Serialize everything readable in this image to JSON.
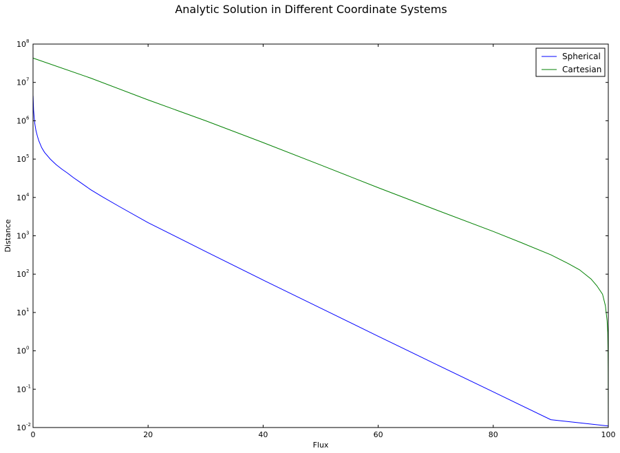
{
  "chart_data": {
    "type": "line",
    "title": "Analytic Solution in Different Coordinate Systems",
    "xlabel": "Flux",
    "ylabel": "Distance",
    "xlim": [
      0,
      100
    ],
    "ylim": [
      0.01,
      100000000
    ],
    "yscale": "log",
    "grid": false,
    "legend_position": "top-right",
    "x_ticks": [
      {
        "value": 0,
        "label": "0"
      },
      {
        "value": 20,
        "label": "20"
      },
      {
        "value": 40,
        "label": "40"
      },
      {
        "value": 60,
        "label": "60"
      },
      {
        "value": 80,
        "label": "80"
      },
      {
        "value": 100,
        "label": "100"
      }
    ],
    "y_ticks": [
      {
        "exp": -2,
        "base": "10",
        "sup": "-2"
      },
      {
        "exp": -1,
        "base": "10",
        "sup": "-1"
      },
      {
        "exp": 0,
        "base": "10",
        "sup": "0"
      },
      {
        "exp": 1,
        "base": "10",
        "sup": "1"
      },
      {
        "exp": 2,
        "base": "10",
        "sup": "2"
      },
      {
        "exp": 3,
        "base": "10",
        "sup": "3"
      },
      {
        "exp": 4,
        "base": "10",
        "sup": "4"
      },
      {
        "exp": 5,
        "base": "10",
        "sup": "5"
      },
      {
        "exp": 6,
        "base": "10",
        "sup": "6"
      },
      {
        "exp": 7,
        "base": "10",
        "sup": "7"
      },
      {
        "exp": 8,
        "base": "10",
        "sup": "8"
      }
    ],
    "series": [
      {
        "name": "Spherical",
        "color": "#0000ff",
        "x": [
          0.01,
          0.1,
          0.2,
          0.3,
          0.5,
          0.75,
          1,
          1.5,
          2,
          3,
          4,
          5,
          6,
          7,
          8,
          10,
          12,
          15,
          20,
          30,
          40,
          50,
          60,
          70,
          80,
          90,
          100
        ],
        "y": [
          4500000,
          1900000,
          1200000,
          860000,
          560000,
          400000,
          300000,
          200000,
          150000,
          100000,
          72000,
          55000,
          43000,
          33000,
          26000,
          16000,
          10500,
          5800,
          2200,
          390,
          70,
          13,
          2.4,
          0.45,
          0.085,
          0.016,
          0.011
        ]
      },
      {
        "name": "Cartesian",
        "color": "#008000",
        "x": [
          0,
          10,
          20,
          30,
          40,
          50,
          60,
          70,
          80,
          85,
          90,
          93,
          95,
          97,
          98,
          99,
          99.5,
          99.8,
          99.9,
          99.95,
          99.98,
          100
        ],
        "y": [
          43000000,
          13000000,
          3500000,
          1000000,
          270000,
          70000,
          18000,
          4800,
          1300,
          650,
          320,
          190,
          130,
          75,
          50,
          30,
          15,
          6,
          3,
          1,
          0.3,
          0.01
        ]
      }
    ]
  }
}
